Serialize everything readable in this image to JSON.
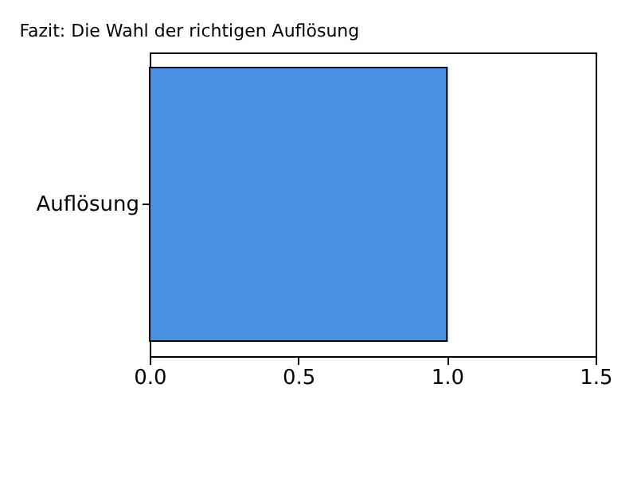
{
  "chart_data": {
    "type": "bar",
    "title": "Fazit: Die Wahl der richtigen Auflösung",
    "orientation": "horizontal",
    "categories": [
      "Auflösung"
    ],
    "values": [
      1.0
    ],
    "color": "#4a90e2",
    "xlim": [
      0,
      1.5
    ],
    "xticks": [
      {
        "value": 0,
        "label": "0.0"
      },
      {
        "value": 0.5,
        "label": "0.5"
      },
      {
        "value": 1,
        "label": "1.0"
      },
      {
        "value": 1.5,
        "label": "1.5"
      }
    ],
    "grid": false
  }
}
